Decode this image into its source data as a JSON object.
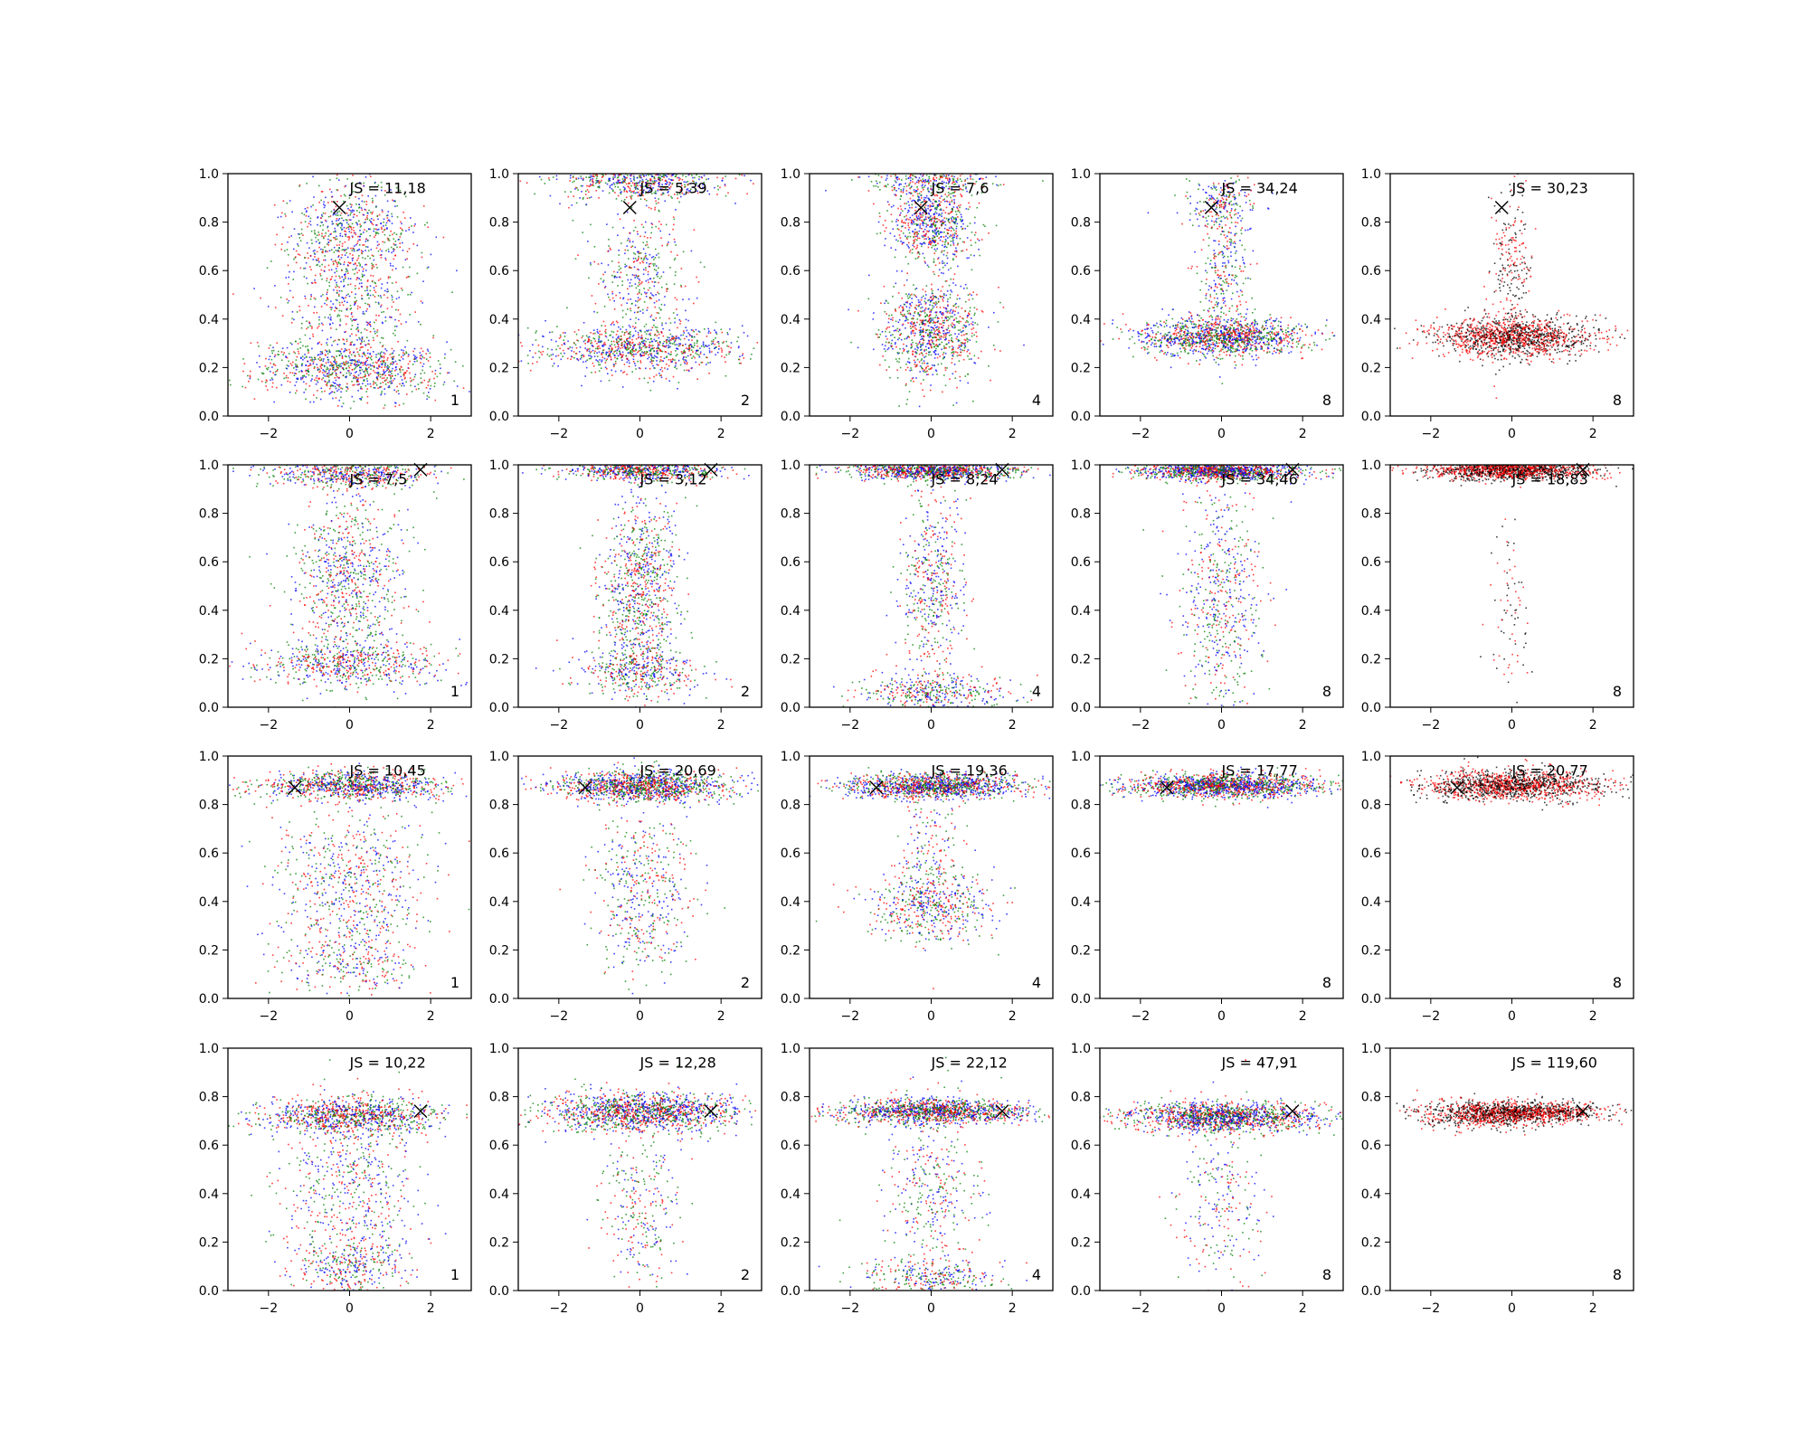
{
  "chart_data": {
    "type": "scatter",
    "rows": 4,
    "cols": 5,
    "xlim": [
      -3,
      3
    ],
    "ylim": [
      0,
      1
    ],
    "xticks": [
      "−2",
      "0",
      "2"
    ],
    "yticks": [
      "0.0",
      "0.2",
      "0.4",
      "0.6",
      "0.8",
      "1.0"
    ],
    "grid": false,
    "colors": {
      "blue": "#0000ff",
      "green": "#008000",
      "red": "#ff0000",
      "black": "#000000"
    },
    "point_colors_default": [
      "blue",
      "green",
      "red"
    ],
    "point_colors_last_column": [
      "black",
      "red"
    ],
    "panels": [
      {
        "js": "JS = 11,18",
        "n": "1",
        "marker": [
          -0.25,
          0.86
        ],
        "point_colors": [
          "blue",
          "green",
          "red"
        ],
        "clusters": [
          {
            "cx": 0.0,
            "cy": 0.2,
            "sx": 1.2,
            "sy": 0.06,
            "n": 900
          },
          {
            "cx": 0.0,
            "cy": 0.75,
            "sx": 0.8,
            "sy": 0.12,
            "n": 700
          },
          {
            "cx": 0.0,
            "cy": 0.45,
            "sx": 0.9,
            "sy": 0.12,
            "n": 400
          }
        ]
      },
      {
        "js": "JS = 5,39",
        "n": "2",
        "marker": [
          -0.25,
          0.86
        ],
        "point_colors": [
          "blue",
          "green",
          "red"
        ],
        "clusters": [
          {
            "cx": 0.0,
            "cy": 0.28,
            "sx": 1.2,
            "sy": 0.05,
            "n": 900
          },
          {
            "cx": 0.0,
            "cy": 0.98,
            "sx": 1.0,
            "sy": 0.04,
            "n": 700
          },
          {
            "cx": 0.0,
            "cy": 0.6,
            "sx": 0.6,
            "sy": 0.15,
            "n": 400
          }
        ]
      },
      {
        "js": "JS = 7,6",
        "n": "4",
        "marker": [
          -0.25,
          0.86
        ],
        "point_colors": [
          "blue",
          "green",
          "red"
        ],
        "clusters": [
          {
            "cx": 0.0,
            "cy": 0.35,
            "sx": 0.6,
            "sy": 0.1,
            "n": 900
          },
          {
            "cx": 0.0,
            "cy": 0.8,
            "sx": 0.5,
            "sy": 0.08,
            "n": 700
          },
          {
            "cx": 0.0,
            "cy": 0.98,
            "sx": 0.8,
            "sy": 0.03,
            "n": 300
          }
        ]
      },
      {
        "js": "JS = 34,24",
        "n": "8",
        "marker": [
          -0.25,
          0.86
        ],
        "point_colors": [
          "blue",
          "green",
          "red"
        ],
        "clusters": [
          {
            "cx": 0.0,
            "cy": 0.33,
            "sx": 1.0,
            "sy": 0.04,
            "n": 1300
          },
          {
            "cx": 0.0,
            "cy": 0.6,
            "sx": 0.3,
            "sy": 0.15,
            "n": 300
          },
          {
            "cx": 0.0,
            "cy": 0.88,
            "sx": 0.5,
            "sy": 0.05,
            "n": 200
          }
        ]
      },
      {
        "js": "JS = 30,23",
        "n": "8",
        "marker": [
          -0.25,
          0.86
        ],
        "point_colors": [
          "black",
          "red"
        ],
        "clusters": [
          {
            "cx": 0.0,
            "cy": 0.33,
            "sx": 1.0,
            "sy": 0.04,
            "n": 1400
          },
          {
            "cx": 0.0,
            "cy": 0.6,
            "sx": 0.25,
            "sy": 0.18,
            "n": 250
          }
        ]
      },
      {
        "js": "JS = 7,5",
        "n": "1",
        "marker": [
          1.75,
          0.98
        ],
        "point_colors": [
          "blue",
          "green",
          "red"
        ],
        "clusters": [
          {
            "cx": 0.0,
            "cy": 0.97,
            "sx": 1.0,
            "sy": 0.03,
            "n": 600
          },
          {
            "cx": 0.0,
            "cy": 0.18,
            "sx": 1.2,
            "sy": 0.05,
            "n": 600
          },
          {
            "cx": 0.0,
            "cy": 0.55,
            "sx": 0.7,
            "sy": 0.18,
            "n": 800
          }
        ]
      },
      {
        "js": "JS = 3,12",
        "n": "2",
        "marker": [
          1.75,
          0.98
        ],
        "point_colors": [
          "blue",
          "green",
          "red"
        ],
        "clusters": [
          {
            "cx": 0.0,
            "cy": 0.98,
            "sx": 1.0,
            "sy": 0.02,
            "n": 700
          },
          {
            "cx": 0.0,
            "cy": 0.5,
            "sx": 0.5,
            "sy": 0.2,
            "n": 900
          },
          {
            "cx": 0.0,
            "cy": 0.15,
            "sx": 0.8,
            "sy": 0.05,
            "n": 400
          }
        ]
      },
      {
        "js": "JS = 8,24",
        "n": "4",
        "marker": [
          1.75,
          0.98
        ],
        "point_colors": [
          "blue",
          "green",
          "red"
        ],
        "clusters": [
          {
            "cx": 0.0,
            "cy": 0.98,
            "sx": 1.0,
            "sy": 0.02,
            "n": 1100
          },
          {
            "cx": 0.0,
            "cy": 0.5,
            "sx": 0.4,
            "sy": 0.2,
            "n": 500
          },
          {
            "cx": 0.0,
            "cy": 0.07,
            "sx": 1.0,
            "sy": 0.04,
            "n": 400
          }
        ]
      },
      {
        "js": "JS = 34,46",
        "n": "8",
        "marker": [
          1.75,
          0.98
        ],
        "point_colors": [
          "blue",
          "green",
          "red"
        ],
        "clusters": [
          {
            "cx": 0.0,
            "cy": 0.98,
            "sx": 1.0,
            "sy": 0.02,
            "n": 1400
          },
          {
            "cx": 0.0,
            "cy": 0.45,
            "sx": 0.5,
            "sy": 0.25,
            "n": 600
          }
        ]
      },
      {
        "js": "JS = 18,83",
        "n": "8",
        "marker": [
          1.75,
          0.98
        ],
        "point_colors": [
          "black",
          "red"
        ],
        "clusters": [
          {
            "cx": 0.0,
            "cy": 0.98,
            "sx": 1.0,
            "sy": 0.02,
            "n": 1500
          },
          {
            "cx": 0.0,
            "cy": 0.4,
            "sx": 0.25,
            "sy": 0.18,
            "n": 80
          }
        ]
      },
      {
        "js": "JS = 10,45",
        "n": "1",
        "marker": [
          -1.35,
          0.87
        ],
        "point_colors": [
          "blue",
          "green",
          "red"
        ],
        "clusters": [
          {
            "cx": 0.0,
            "cy": 0.88,
            "sx": 1.1,
            "sy": 0.03,
            "n": 1000
          },
          {
            "cx": 0.0,
            "cy": 0.5,
            "sx": 0.9,
            "sy": 0.15,
            "n": 600
          },
          {
            "cx": 0.0,
            "cy": 0.15,
            "sx": 0.9,
            "sy": 0.08,
            "n": 300
          }
        ]
      },
      {
        "js": "JS = 20,69",
        "n": "2",
        "marker": [
          -1.35,
          0.87
        ],
        "point_colors": [
          "blue",
          "green",
          "red"
        ],
        "clusters": [
          {
            "cx": 0.0,
            "cy": 0.88,
            "sx": 1.1,
            "sy": 0.03,
            "n": 1300
          },
          {
            "cx": 0.0,
            "cy": 0.45,
            "sx": 0.6,
            "sy": 0.2,
            "n": 500
          }
        ]
      },
      {
        "js": "JS = 19,36",
        "n": "4",
        "marker": [
          -1.35,
          0.87
        ],
        "point_colors": [
          "blue",
          "green",
          "red"
        ],
        "clusters": [
          {
            "cx": 0.0,
            "cy": 0.88,
            "sx": 1.1,
            "sy": 0.025,
            "n": 1300
          },
          {
            "cx": 0.0,
            "cy": 0.38,
            "sx": 0.8,
            "sy": 0.07,
            "n": 500
          },
          {
            "cx": 0.0,
            "cy": 0.6,
            "sx": 0.4,
            "sy": 0.15,
            "n": 200
          }
        ]
      },
      {
        "js": "JS = 17,77",
        "n": "8",
        "marker": [
          -1.35,
          0.87
        ],
        "point_colors": [
          "blue",
          "green",
          "red"
        ],
        "clusters": [
          {
            "cx": 0.0,
            "cy": 0.88,
            "sx": 1.2,
            "sy": 0.025,
            "n": 1600
          }
        ]
      },
      {
        "js": "JS = 20,77",
        "n": "8",
        "marker": [
          -1.35,
          0.87
        ],
        "point_colors": [
          "black",
          "red"
        ],
        "clusters": [
          {
            "cx": 0.0,
            "cy": 0.88,
            "sx": 1.1,
            "sy": 0.03,
            "n": 1500
          }
        ]
      },
      {
        "js": "JS = 10,22",
        "n": "1",
        "marker": [
          1.75,
          0.74
        ],
        "point_colors": [
          "blue",
          "green",
          "red"
        ],
        "clusters": [
          {
            "cx": 0.0,
            "cy": 0.72,
            "sx": 1.1,
            "sy": 0.04,
            "n": 1000
          },
          {
            "cx": 0.0,
            "cy": 0.4,
            "sx": 0.8,
            "sy": 0.2,
            "n": 600
          },
          {
            "cx": 0.0,
            "cy": 0.1,
            "sx": 0.7,
            "sy": 0.06,
            "n": 300
          }
        ]
      },
      {
        "js": "JS = 12,28",
        "n": "2",
        "marker": [
          1.75,
          0.74
        ],
        "point_colors": [
          "blue",
          "green",
          "red"
        ],
        "clusters": [
          {
            "cx": 0.0,
            "cy": 0.74,
            "sx": 1.2,
            "sy": 0.04,
            "n": 1400
          },
          {
            "cx": 0.0,
            "cy": 0.35,
            "sx": 0.5,
            "sy": 0.2,
            "n": 300
          }
        ]
      },
      {
        "js": "JS = 22,12",
        "n": "4",
        "marker": [
          1.75,
          0.74
        ],
        "point_colors": [
          "blue",
          "green",
          "red"
        ],
        "clusters": [
          {
            "cx": 0.0,
            "cy": 0.74,
            "sx": 1.2,
            "sy": 0.025,
            "n": 1300
          },
          {
            "cx": 0.0,
            "cy": 0.4,
            "sx": 0.6,
            "sy": 0.2,
            "n": 400
          },
          {
            "cx": 0.0,
            "cy": 0.06,
            "sx": 0.9,
            "sy": 0.04,
            "n": 300
          }
        ]
      },
      {
        "js": "JS = 47,91",
        "n": "8",
        "marker": [
          1.75,
          0.74
        ],
        "point_colors": [
          "blue",
          "green",
          "red"
        ],
        "clusters": [
          {
            "cx": 0.0,
            "cy": 0.72,
            "sx": 1.2,
            "sy": 0.03,
            "n": 1500
          },
          {
            "cx": 0.0,
            "cy": 0.35,
            "sx": 0.5,
            "sy": 0.2,
            "n": 250
          }
        ]
      },
      {
        "js": "JS = 119,60",
        "n": "8",
        "marker": [
          1.75,
          0.74
        ],
        "point_colors": [
          "black",
          "red"
        ],
        "clusters": [
          {
            "cx": -0.6,
            "cy": 0.73,
            "sx": 0.9,
            "sy": 0.03,
            "n": 800
          },
          {
            "cx": 0.5,
            "cy": 0.74,
            "sx": 0.9,
            "sy": 0.02,
            "n": 800
          }
        ]
      }
    ]
  }
}
